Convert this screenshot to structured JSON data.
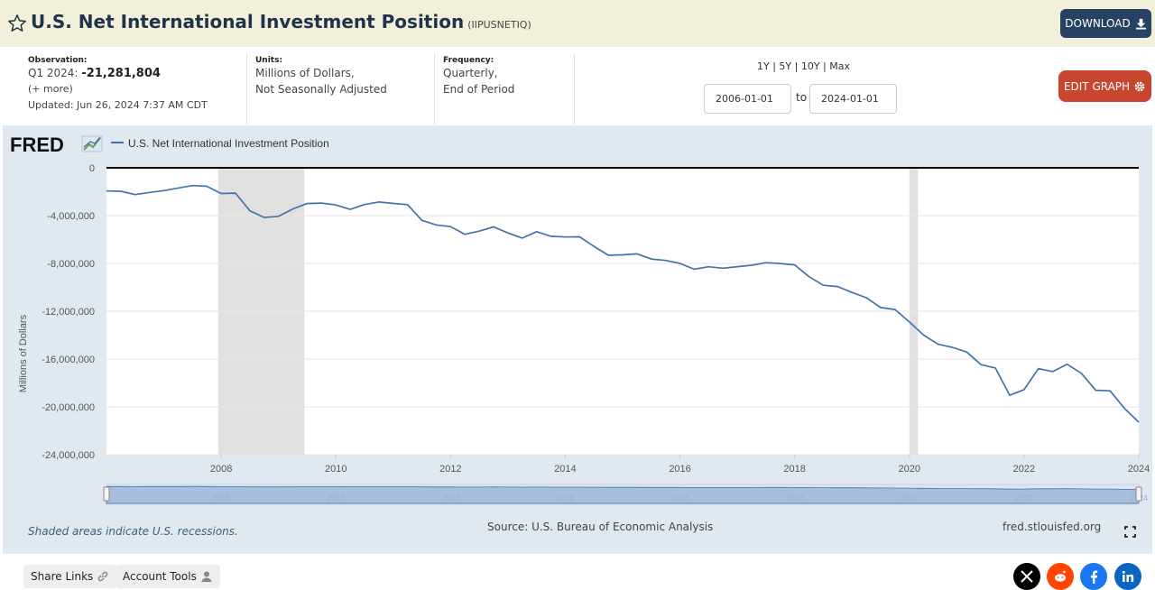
{
  "header": {
    "title": "U.S. Net International Investment Position",
    "series_id": "(IIPUSNETIQ)",
    "download_label": "DOWNLOAD"
  },
  "observation": {
    "label": "Observation:",
    "period": "Q1 2024:",
    "value": "-21,281,804",
    "more": "(+ more)",
    "updated": "Updated: Jun 26, 2024 7:37 AM CDT"
  },
  "units": {
    "label": "Units:",
    "line1": "Millions of Dollars,",
    "line2": "Not Seasonally Adjusted"
  },
  "frequency": {
    "label": "Frequency:",
    "line1": "Quarterly,",
    "line2": "End of Period"
  },
  "range": {
    "options": [
      "1Y",
      "5Y",
      "10Y",
      "Max"
    ],
    "start": "2006-01-01",
    "to_label": "to",
    "end": "2024-01-01"
  },
  "edit_graph_label": "EDIT GRAPH",
  "footer": {
    "recession_note": "Shaded areas indicate U.S. recessions.",
    "source": "Source: U.S. Bureau of Economic Analysis",
    "site": "fred.stlouisfed.org"
  },
  "bottom": {
    "share_links": "Share Links",
    "account_tools": "Account Tools",
    "social": [
      "X",
      "reddit",
      "facebook",
      "linkedin"
    ]
  },
  "colors": {
    "line": "#4572a7",
    "recession": "#e1e1e1",
    "download_bg": "#274263",
    "edit_bg": "#c8462f",
    "panel_bg": "#e1e9f0"
  },
  "chart_data": {
    "type": "line",
    "logo": "FRED",
    "title": "U.S. Net International Investment Position",
    "legend": [
      "U.S. Net International Investment Position"
    ],
    "ylabel": "Millions of Dollars",
    "xlabel": "",
    "ylim": [
      -24000000,
      0
    ],
    "yticks": [
      0,
      -4000000,
      -8000000,
      -12000000,
      -16000000,
      -20000000,
      -24000000
    ],
    "ytick_labels": [
      "0",
      "-4,000,000",
      "-8,000,000",
      "-12,000,000",
      "-16,000,000",
      "-20,000,000",
      "-24,000,000"
    ],
    "xlim": [
      2006.0,
      2024.0
    ],
    "xticks": [
      "2008",
      "2010",
      "2012",
      "2014",
      "2016",
      "2018",
      "2020",
      "2022",
      "2024"
    ],
    "recessions": [
      [
        2007.95,
        2009.45
      ],
      [
        2020.0,
        2020.15
      ]
    ],
    "series": [
      {
        "name": "U.S. Net International Investment Position",
        "x": [
          2006.0,
          2006.25,
          2006.5,
          2006.75,
          2007.0,
          2007.25,
          2007.5,
          2007.75,
          2008.0,
          2008.25,
          2008.5,
          2008.75,
          2009.0,
          2009.25,
          2009.5,
          2009.75,
          2010.0,
          2010.25,
          2010.5,
          2010.75,
          2011.0,
          2011.25,
          2011.5,
          2011.75,
          2012.0,
          2012.25,
          2012.5,
          2012.75,
          2013.0,
          2013.25,
          2013.5,
          2013.75,
          2014.0,
          2014.25,
          2014.5,
          2014.75,
          2015.0,
          2015.25,
          2015.5,
          2015.75,
          2016.0,
          2016.25,
          2016.5,
          2016.75,
          2017.0,
          2017.25,
          2017.5,
          2017.75,
          2018.0,
          2018.25,
          2018.5,
          2018.75,
          2019.0,
          2019.25,
          2019.5,
          2019.75,
          2020.0,
          2020.25,
          2020.5,
          2020.75,
          2021.0,
          2021.25,
          2021.5,
          2021.75,
          2022.0,
          2022.25,
          2022.5,
          2022.75,
          2023.0,
          2023.25,
          2023.5,
          2023.75,
          2024.0
        ],
        "values": [
          -1940000,
          -1960000,
          -2240000,
          -2060000,
          -1910000,
          -1690000,
          -1490000,
          -1550000,
          -2150000,
          -2120000,
          -3600000,
          -4150000,
          -4060000,
          -3440000,
          -2990000,
          -2950000,
          -3110000,
          -3480000,
          -3070000,
          -2860000,
          -2980000,
          -3080000,
          -4400000,
          -4780000,
          -4920000,
          -5560000,
          -5300000,
          -4940000,
          -5450000,
          -5880000,
          -5340000,
          -5730000,
          -5790000,
          -5770000,
          -6570000,
          -7310000,
          -7280000,
          -7200000,
          -7630000,
          -7750000,
          -8000000,
          -8480000,
          -8280000,
          -8400000,
          -8270000,
          -8150000,
          -7940000,
          -8010000,
          -8120000,
          -9110000,
          -9830000,
          -9930000,
          -10430000,
          -10870000,
          -11690000,
          -11860000,
          -12900000,
          -14000000,
          -14760000,
          -15020000,
          -15410000,
          -16470000,
          -16750000,
          -19030000,
          -18560000,
          -16800000,
          -17050000,
          -16440000,
          -17190000,
          -18610000,
          -18660000,
          -20120000,
          -21281804
        ]
      }
    ]
  }
}
